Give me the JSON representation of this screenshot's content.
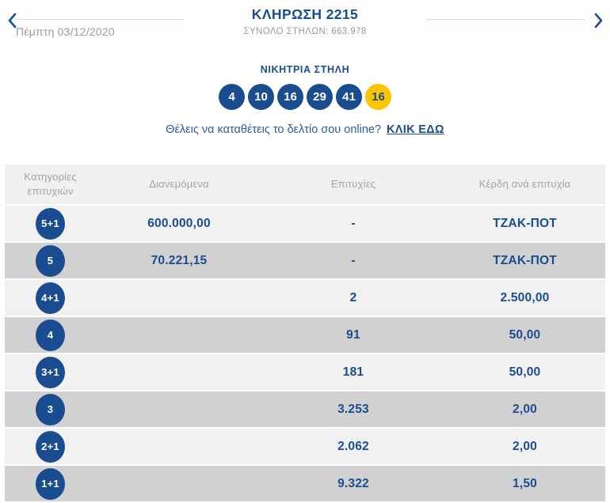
{
  "header": {
    "title": "ΚΛΗΡΩΣΗ 2215",
    "total_columns": "ΣΥΝΟΛΟ ΣΤΗΛΩΝ: 663.978",
    "date": "Πέμπτη 03/12/2020",
    "prev_icon": "chevron-left",
    "next_icon": "chevron-right"
  },
  "winning": {
    "label": "ΝΙΚΗΤΡΙΑ ΣΤΗΛΗ",
    "numbers": [
      "4",
      "10",
      "16",
      "29",
      "41"
    ],
    "joker": "16"
  },
  "cta": {
    "text": "Θέλεις να καταθέτεις το δελτίο σου online?",
    "link": "ΚΛΙΚ ΕΔΩ"
  },
  "table": {
    "headers": [
      "Κατηγορίες επιτυχιών",
      "Διανεμόμενα",
      "Επιτυχίες",
      "Κέρδη ανά επιτυχία"
    ],
    "rows": [
      {
        "category": "5+1",
        "distributed": "600.000,00",
        "wins": "-",
        "prize": "ΤΖΑΚ-ΠΟΤ"
      },
      {
        "category": "5",
        "distributed": "70.221,15",
        "wins": "-",
        "prize": "ΤΖΑΚ-ΠΟΤ"
      },
      {
        "category": "4+1",
        "distributed": "",
        "wins": "2",
        "prize": "2.500,00"
      },
      {
        "category": "4",
        "distributed": "",
        "wins": "91",
        "prize": "50,00"
      },
      {
        "category": "3+1",
        "distributed": "",
        "wins": "181",
        "prize": "50,00"
      },
      {
        "category": "3",
        "distributed": "",
        "wins": "3.253",
        "prize": "2,00"
      },
      {
        "category": "2+1",
        "distributed": "",
        "wins": "2.062",
        "prize": "2,00"
      },
      {
        "category": "1+1",
        "distributed": "",
        "wins": "9.322",
        "prize": "1,50"
      }
    ]
  },
  "colors": {
    "primary_blue": "#1a4c90",
    "joker_yellow": "#fdc500",
    "row_light": "#f2f1f1",
    "row_dark": "#d2d1d1",
    "header_band": "#f1f0ef",
    "muted_text": "#9c9c9c"
  }
}
